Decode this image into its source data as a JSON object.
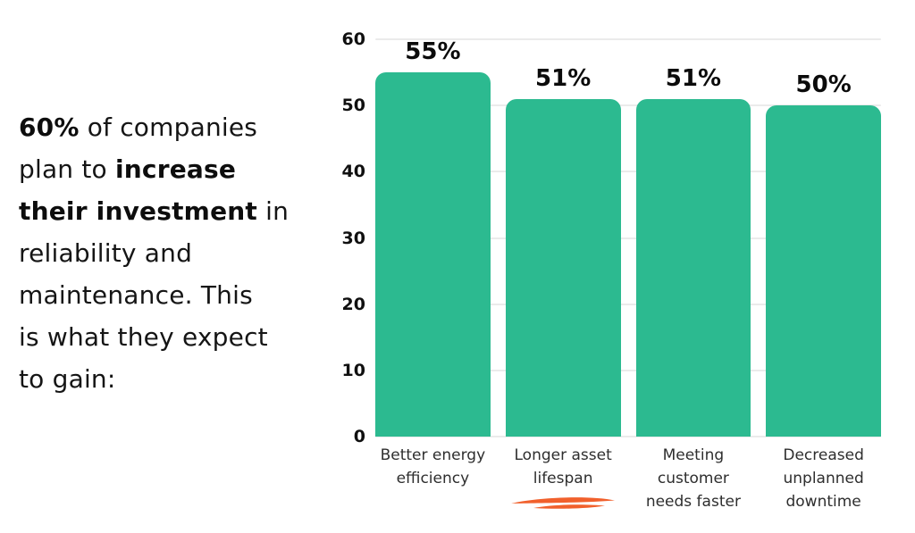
{
  "palette": {
    "background": "#ffffff",
    "caption_text": "#151515",
    "bar_fill": "#2cba90",
    "grid_line": "#ebebeb",
    "axis_tick_text": "#101010",
    "value_label_text": "#0b0b0b",
    "category_label_text": "#2e2e2e",
    "underline_accent": "#f1602c"
  },
  "caption": {
    "lines": [
      [
        {
          "text": "60%",
          "bold": true
        },
        {
          "text": " of companies",
          "bold": false
        }
      ],
      [
        {
          "text": "plan to ",
          "bold": false
        },
        {
          "text": "increase",
          "bold": true
        }
      ],
      [
        {
          "text": "their investment",
          "bold": true
        },
        {
          "text": " in",
          "bold": false
        }
      ],
      [
        {
          "text": "reliability and",
          "bold": false
        }
      ],
      [
        {
          "text": "maintenance. This",
          "bold": false
        }
      ],
      [
        {
          "text": "is what they expect",
          "bold": false
        }
      ],
      [
        {
          "text": "to gain:",
          "bold": false
        }
      ]
    ]
  },
  "chart_data": {
    "type": "bar",
    "title": "",
    "xlabel": "",
    "ylabel": "",
    "categories": [
      "Better energy\nefficiency",
      "Longer asset\nlifespan",
      "Meeting\ncustomer\nneeds faster",
      "Decreased\nunplanned\ndowntime"
    ],
    "values": [
      55,
      51,
      51,
      50
    ],
    "value_labels": [
      "55%",
      "51%",
      "51%",
      "50%"
    ],
    "ylim": [
      0,
      60
    ],
    "yticks": [
      60,
      50,
      40,
      30,
      20,
      10,
      0
    ],
    "ytick_labels": [
      "60",
      "50",
      "40",
      "30",
      "20",
      "10",
      "0"
    ],
    "grid": true,
    "legend_position": "none",
    "bar_color": "#2cba90",
    "annotation": {
      "type": "hand-drawn-underline",
      "category_index": 1,
      "color": "#f1602c"
    }
  }
}
